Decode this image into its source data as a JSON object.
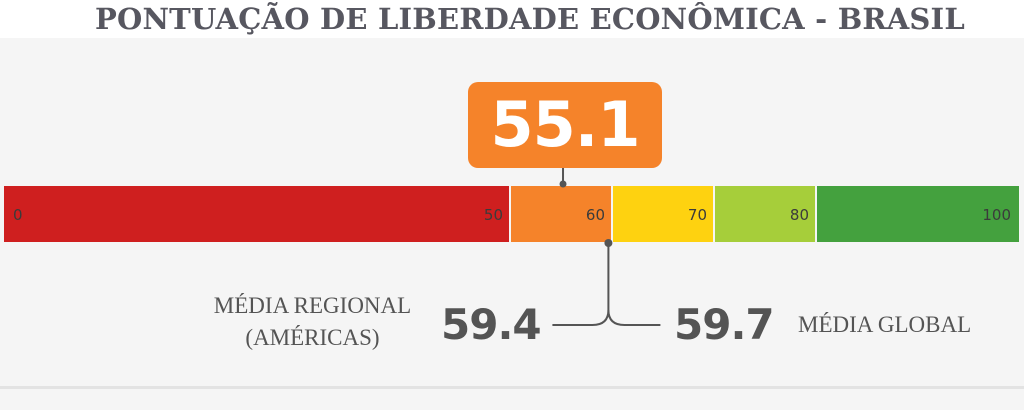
{
  "title": "PONTUAÇÃO DE LIBERDADE ECONÔMICA - BRASIL",
  "score": "55.1",
  "regional": {
    "value": "59.4",
    "label_line1": "MÉDIA REGIONAL",
    "label_line2": "(AMÉRICAS)"
  },
  "global": {
    "value": "59.7",
    "label": "MÉDIA GLOBAL"
  },
  "chart_data": {
    "type": "gauge-bar",
    "title": "PONTUAÇÃO DE LIBERDADE ECONÔMICA - BRASIL",
    "range": [
      0,
      100
    ],
    "segments": [
      {
        "from": 0,
        "to": 50,
        "color": "#cf1f1f",
        "start_label": "0",
        "end_label": "50"
      },
      {
        "from": 50,
        "to": 60,
        "color": "#f5832a",
        "end_label": "60"
      },
      {
        "from": 60,
        "to": 70,
        "color": "#fed210",
        "end_label": "70"
      },
      {
        "from": 70,
        "to": 80,
        "color": "#a6ce3a",
        "end_label": "80"
      },
      {
        "from": 80,
        "to": 100,
        "color": "#44a13e",
        "end_label": "100"
      }
    ],
    "score": 55.1,
    "regional_average": 59.4,
    "global_average": 59.7
  }
}
